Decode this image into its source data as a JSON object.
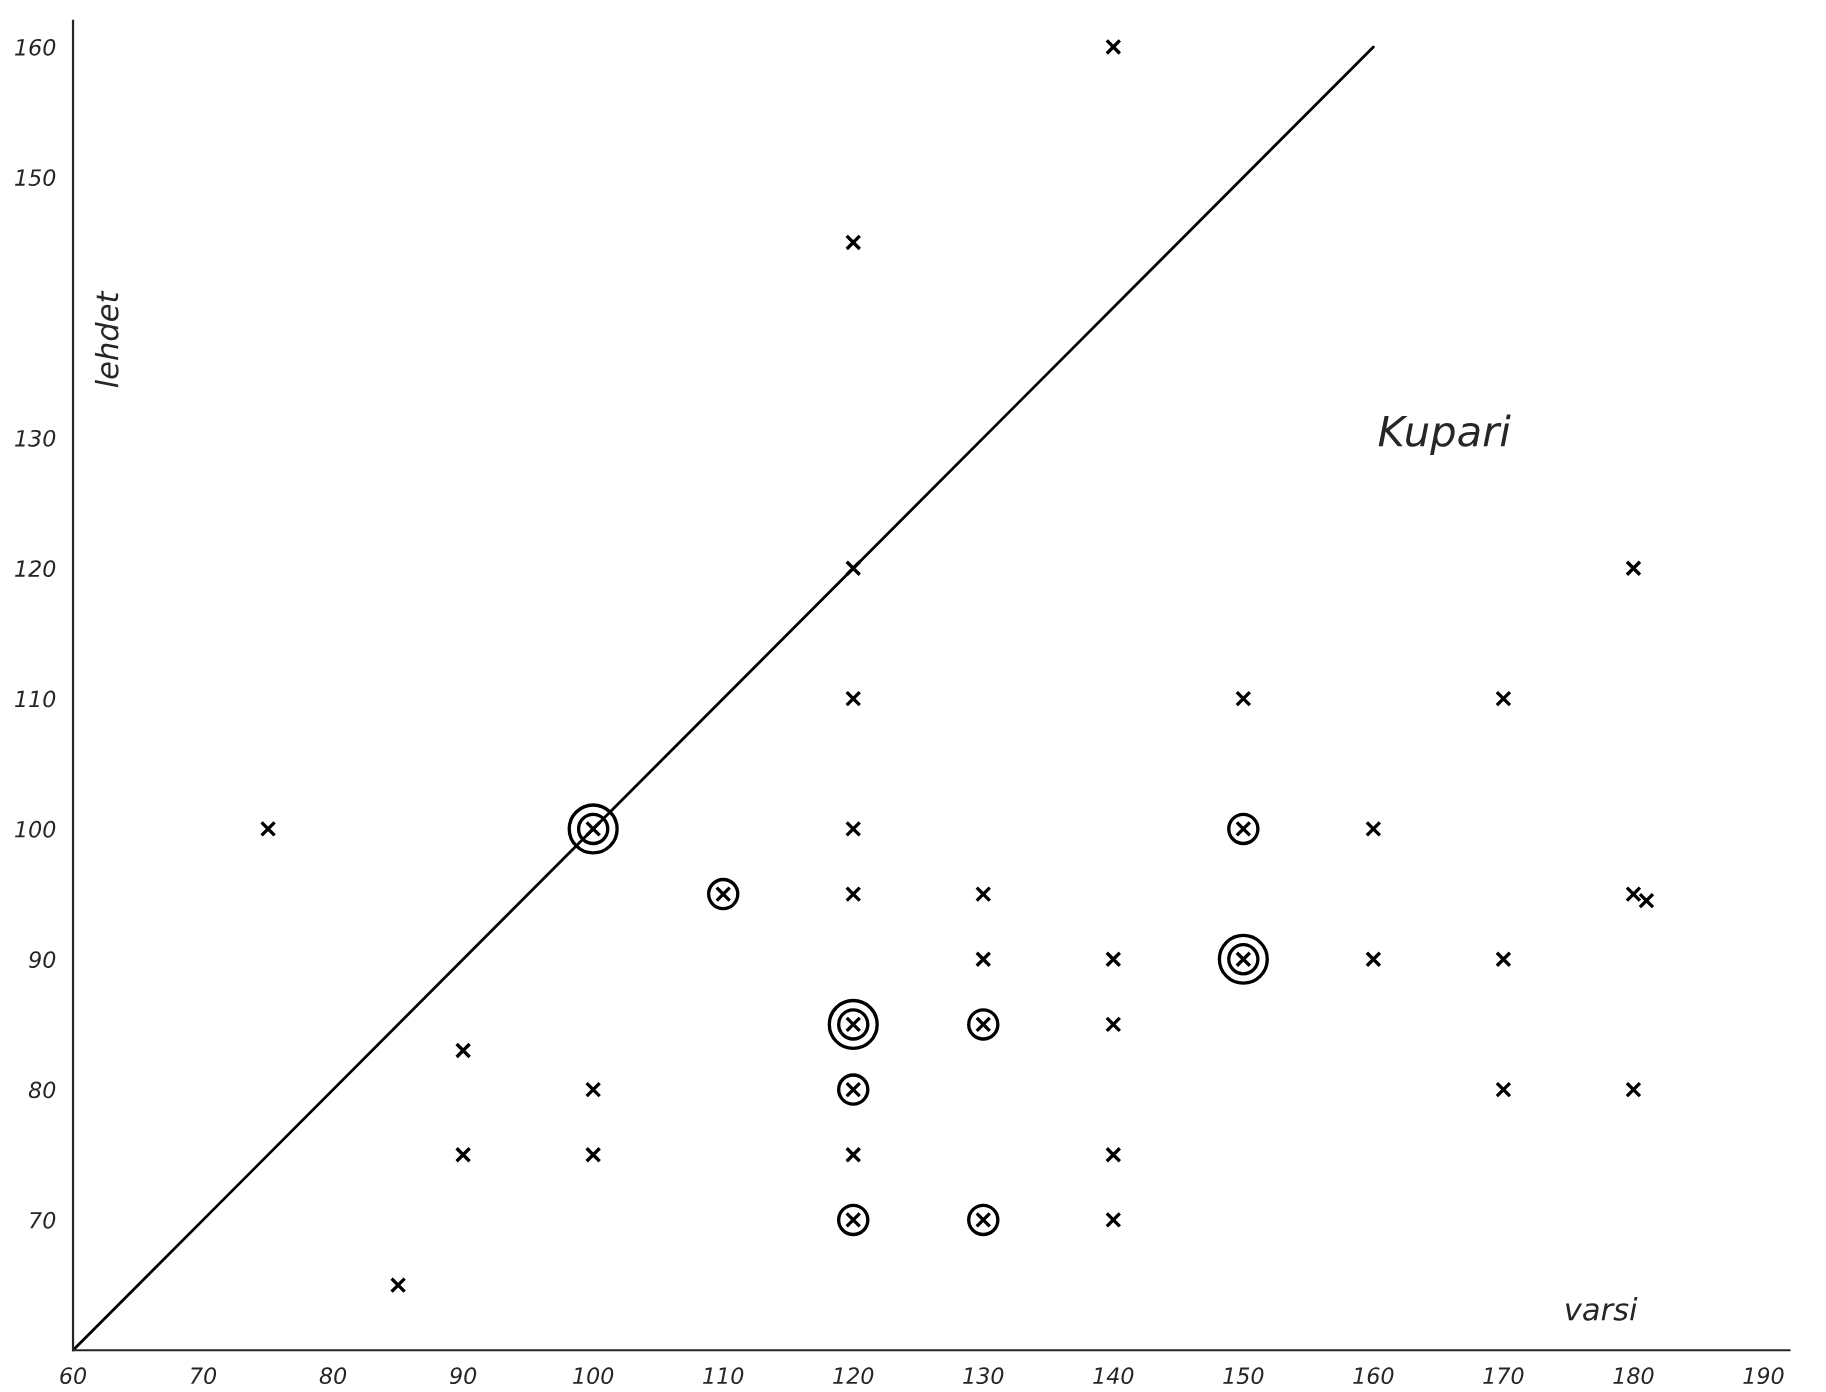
{
  "chart_data": {
    "type": "scatter",
    "xlabel": "varsi",
    "ylabel": "lehdet",
    "annotations": [
      "Kupari"
    ],
    "xlim": [
      60,
      192
    ],
    "ylim": [
      60,
      162
    ],
    "xticks": [
      60,
      70,
      80,
      90,
      100,
      110,
      120,
      130,
      140,
      150,
      160,
      170,
      180,
      190
    ],
    "yticks": [
      70,
      80,
      90,
      100,
      110,
      120,
      130,
      150,
      160
    ],
    "grid": false,
    "legend": false,
    "series": [
      {
        "color": "#000000",
        "marker": "cross",
        "x": [
          75,
          85,
          90,
          90,
          100,
          100,
          120,
          120,
          120,
          120,
          120,
          120,
          130,
          130,
          140,
          140,
          140,
          140,
          140,
          150,
          160,
          160,
          170,
          170,
          170,
          180,
          180,
          181,
          180,
          110,
          120,
          120,
          130,
          130,
          150,
          100,
          120,
          150
        ],
        "values": [
          100,
          65,
          83,
          75,
          80,
          75,
          145,
          120,
          110,
          100,
          95,
          75,
          95,
          90,
          160,
          90,
          85,
          75,
          70,
          110,
          100,
          90,
          110,
          90,
          80,
          120,
          95,
          94.5,
          80,
          95,
          80,
          70,
          85,
          70,
          100,
          100,
          85,
          90
        ]
      },
      {
        "color": "#000000",
        "marker": "circle",
        "x": [
          110,
          120,
          120,
          130,
          130,
          150,
          100,
          120,
          150
        ],
        "values": [
          95,
          80,
          70,
          85,
          70,
          100,
          100,
          85,
          90
        ]
      },
      {
        "color": "#000000",
        "marker": "circle",
        "x": [
          100,
          120,
          150
        ],
        "values": [
          100,
          85,
          90
        ]
      },
      {
        "type": "line",
        "color": "#000000",
        "marker": "none",
        "x": [
          60,
          160
        ],
        "values": [
          60,
          160
        ]
      }
    ]
  }
}
